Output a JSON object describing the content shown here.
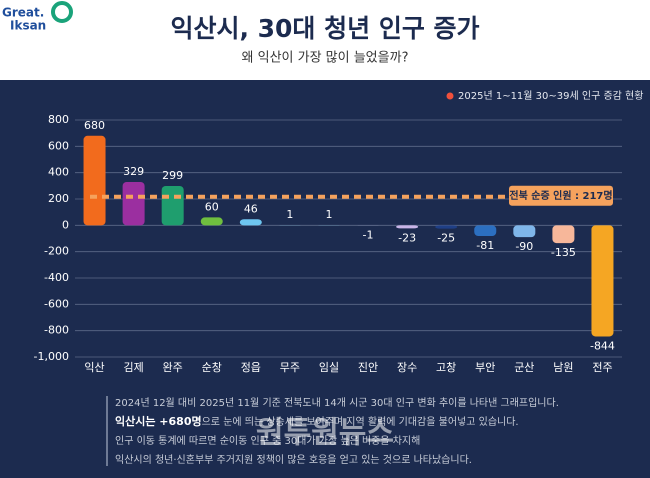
{
  "header": {
    "logo": [
      "Great.",
      "Iksan"
    ],
    "title": "익산시, 30대 청년 인구 증가",
    "subtitle": "왜 익산이 가장 많이 늘었을까?"
  },
  "chart_data": {
    "type": "bar",
    "legend": "2025년 1~11월 30~39세 인구 증감 현황",
    "legend_color": "#f0503c",
    "categories": [
      "익산",
      "김제",
      "완주",
      "순창",
      "정읍",
      "무주",
      "임실",
      "진안",
      "장수",
      "고창",
      "부안",
      "군산",
      "남원",
      "전주"
    ],
    "values": [
      680,
      329,
      299,
      60,
      46,
      1,
      1,
      -1,
      -23,
      -25,
      -81,
      -90,
      -135,
      -844
    ],
    "colors": [
      "#f26b1d",
      "#9b2fa0",
      "#1f9e6e",
      "#6fbf3f",
      "#6ec6f0",
      "#6ec6f0",
      "#6ec6f0",
      "#9aa3c8",
      "#c9b4e8",
      "#1f3f86",
      "#2c6fc0",
      "#7fb6ea",
      "#f7b79a",
      "#f5a623"
    ],
    "ylim": [
      -1000,
      800
    ],
    "yticks": [
      {
        "value": -1000,
        "label": "-1,000"
      },
      -800,
      -600,
      -400,
      -200,
      0,
      200,
      400,
      600,
      800
    ],
    "grid": true,
    "reference_line": {
      "value": 217,
      "label": "전북 순증 인원 : 217명",
      "color": "#f5a25d"
    }
  },
  "notes": {
    "lines": [
      {
        "text": "2024년 12월 대비 2025년 11월 기준 전북도내 14개 시군 30대 인구 변화 추이를 나타낸 그래프입니다."
      },
      {
        "bold": "익산시는 +680명",
        "text": "으로 눈에 띄는 상승세를 보여주며 지역 활력에 기대감을 불어넣고 있습니다."
      },
      {
        "text": "인구 이동 통계에 따르면 순이동 인구 중 30대가 가장 높은 비중을 차지해"
      },
      {
        "text": "익산시의 청년·신혼부부 주거지원 정책이 많은 호응을 얻고 있는 것으로 나타났습니다."
      }
    ],
    "watermark": "원투원뉴스"
  }
}
